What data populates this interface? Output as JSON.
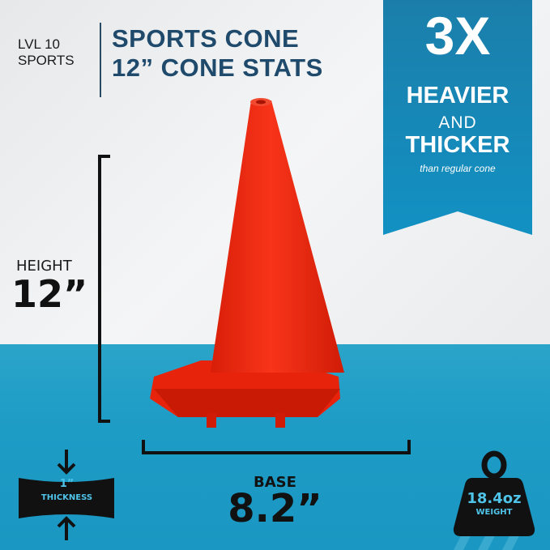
{
  "brand": {
    "line1": "LVL 10",
    "line2": "SPORTS"
  },
  "title": {
    "line1": "SPORTS CONE",
    "line2": "12” CONE STATS"
  },
  "ribbon": {
    "big": "3X",
    "line1": "HEAVIER",
    "line2": "AND",
    "line3": "THICKER",
    "sub": "than regular cone"
  },
  "height": {
    "label": "HEIGHT",
    "value": "12”"
  },
  "base": {
    "label": "BASE",
    "value": "8.2”"
  },
  "thickness": {
    "value": "1”",
    "label": "THICKNESS"
  },
  "weight": {
    "value": "18.4oz",
    "label": "WEIGHT",
    "icon": "weight-icon"
  },
  "colors": {
    "cone": "#f0260f",
    "navy": "#1f4a6c",
    "ribbon": "#1b86b4",
    "floor": "#1d9cc6",
    "weight_text": "#4fc3e8"
  }
}
